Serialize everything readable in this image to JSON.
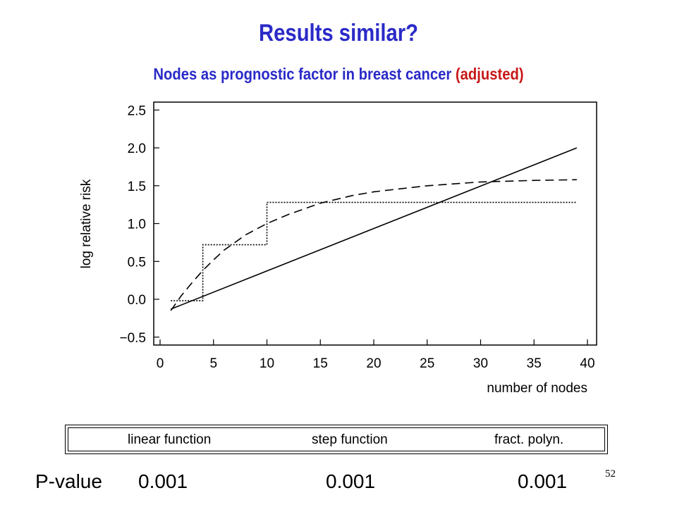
{
  "slide": {
    "title": "Results similar?",
    "subtitle_main": "Nodes as prognostic factor in breast cancer",
    "subtitle_highlight": "(adjusted)",
    "page_number": "52"
  },
  "legend": {
    "items": [
      {
        "label": "linear function",
        "style": "solid"
      },
      {
        "label": "step function",
        "style": "dotted"
      },
      {
        "label": "fract. polyn.",
        "style": "dashed"
      }
    ]
  },
  "pvalues": {
    "label": "P-value",
    "values": [
      "0.001",
      "0.001",
      "0.001"
    ]
  },
  "colors": {
    "title": "#2a2ac8",
    "highlight": "#c81818"
  },
  "chart_data": {
    "type": "line",
    "xlabel": "number of nodes",
    "ylabel": "log relative risk",
    "xlim": [
      0,
      40
    ],
    "ylim": [
      -0.6,
      2.6
    ],
    "xticks": [
      0,
      5,
      10,
      15,
      20,
      25,
      30,
      35,
      40
    ],
    "yticks": [
      -0.5,
      0.0,
      0.5,
      1.0,
      1.5,
      2.0,
      2.5
    ],
    "ytick_labels": [
      "−0.5",
      "0.0",
      "0.5",
      "1.0",
      "1.5",
      "2.0",
      "2.5"
    ],
    "grid": false,
    "series": [
      {
        "name": "linear function",
        "style": "solid",
        "x": [
          1,
          39
        ],
        "y": [
          -0.13,
          2.0
        ]
      },
      {
        "name": "step function",
        "style": "dotted",
        "x": [
          1,
          4,
          4,
          10,
          10,
          39
        ],
        "y": [
          -0.02,
          -0.02,
          0.72,
          0.72,
          1.28,
          1.28
        ]
      },
      {
        "name": "fract. polyn.",
        "style": "dashed",
        "x": [
          1,
          2,
          3,
          4,
          5,
          6,
          8,
          10,
          12,
          15,
          18,
          20,
          25,
          30,
          35,
          39
        ],
        "y": [
          -0.15,
          0.05,
          0.22,
          0.38,
          0.52,
          0.65,
          0.85,
          1.0,
          1.12,
          1.27,
          1.37,
          1.42,
          1.5,
          1.55,
          1.57,
          1.58
        ]
      }
    ]
  }
}
